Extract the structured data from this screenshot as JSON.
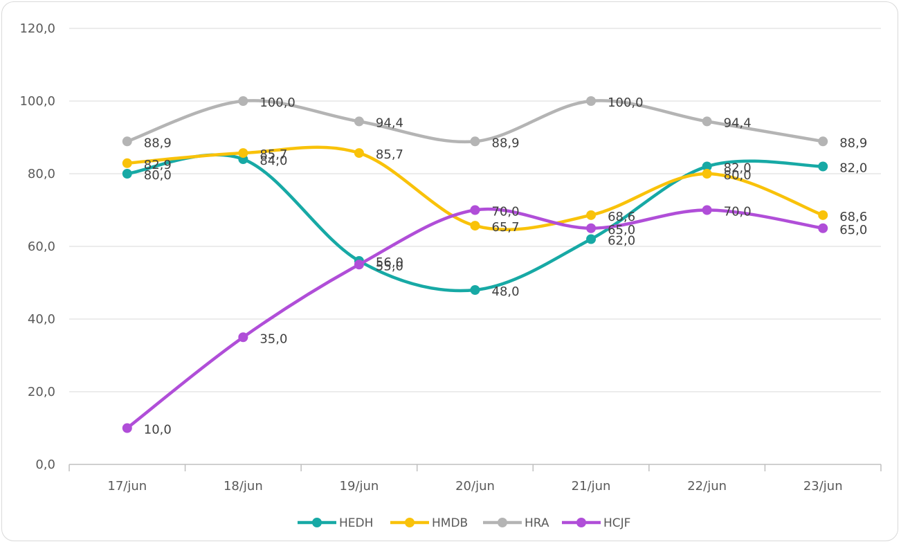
{
  "chart_data": {
    "type": "line",
    "categories": [
      "17/jun",
      "18/jun",
      "19/jun",
      "20/jun",
      "21/jun",
      "22/jun",
      "23/jun"
    ],
    "ylim": [
      0,
      120
    ],
    "yticks": [
      0,
      20,
      40,
      60,
      80,
      100,
      120
    ],
    "ytick_labels": [
      "0,0",
      "20,0",
      "40,0",
      "60,0",
      "80,0",
      "100,0",
      "120,0"
    ],
    "grid": true,
    "smooth": true,
    "legend_position": "bottom",
    "series": [
      {
        "name": "HEDH",
        "color": "#17a9a5",
        "values": [
          80.0,
          84.0,
          56.0,
          48.0,
          62.0,
          82.0,
          82.0
        ],
        "labels": [
          "80,0",
          "84,0",
          "56,0",
          "48,0",
          "62,0",
          "82,0",
          "82,0"
        ]
      },
      {
        "name": "HMDB",
        "color": "#f9c20a",
        "values": [
          82.9,
          85.7,
          85.7,
          65.7,
          68.6,
          80.0,
          68.6
        ],
        "labels": [
          "82,9",
          "85,7",
          "85,7",
          "65,7",
          "68,6",
          "80,0",
          "68,6"
        ]
      },
      {
        "name": "HRA",
        "color": "#b4b4b4",
        "values": [
          88.9,
          100.0,
          94.4,
          88.9,
          100.0,
          94.4,
          88.9
        ],
        "labels": [
          "88,9",
          "100,0",
          "94,4",
          "88,9",
          "100,0",
          "94,4",
          "88,9"
        ]
      },
      {
        "name": "HCJF",
        "color": "#b04ed8",
        "values": [
          10.0,
          35.0,
          55.0,
          70.0,
          65.0,
          70.0,
          65.0
        ],
        "labels": [
          "10,0",
          "35,0",
          "55,0",
          "70,0",
          "65,0",
          "70,0",
          "65,0"
        ]
      }
    ]
  }
}
